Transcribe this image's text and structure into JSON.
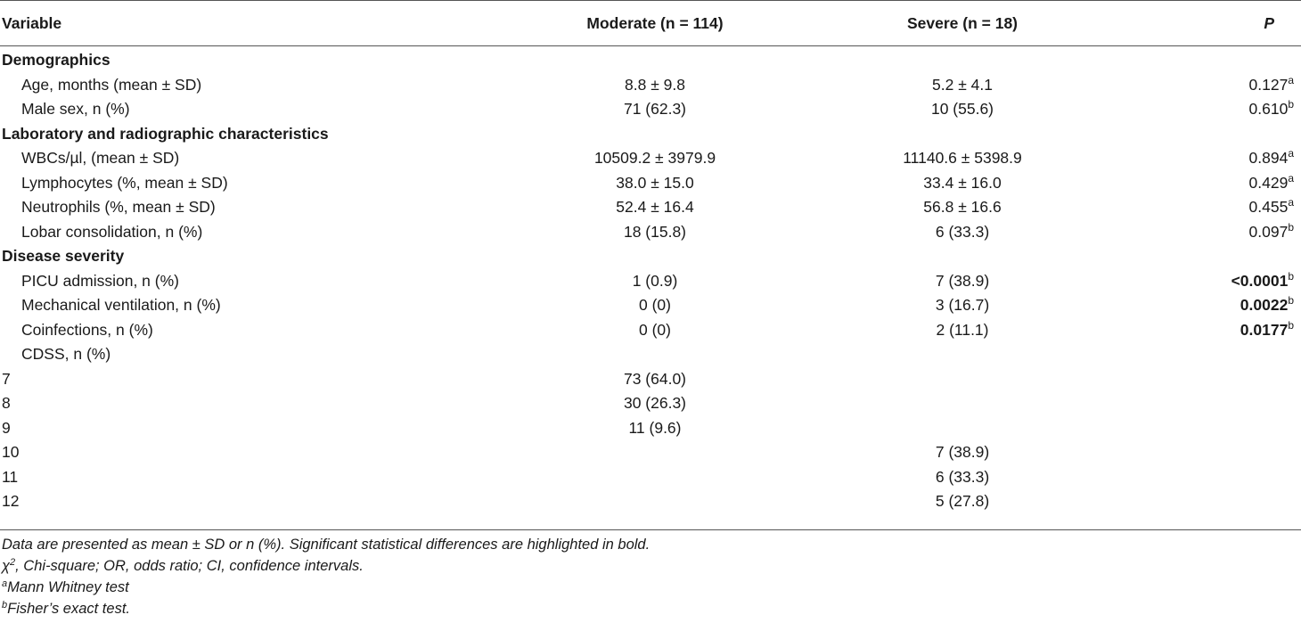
{
  "headers": {
    "variable": "Variable",
    "moderate": "Moderate (n = 114)",
    "severe": "Severe (n = 18)",
    "p": "P"
  },
  "sections": {
    "demographics": "Demographics",
    "lab": "Laboratory and radiographic characteristics",
    "severity": "Disease severity"
  },
  "rows": {
    "age": {
      "label": "Age, months (mean ± SD)",
      "moderate": "8.8 ± 9.8",
      "severe": "5.2 ± 4.1",
      "p": "0.127",
      "sup": "a"
    },
    "male": {
      "label": "Male sex, n (%)",
      "moderate": "71 (62.3)",
      "severe": "10 (55.6)",
      "p": "0.610",
      "sup": "b"
    },
    "wbc": {
      "label": "WBCs/µl, (mean ± SD)",
      "moderate": "10509.2 ± 3979.9",
      "severe": "11140.6 ± 5398.9",
      "p": "0.894",
      "sup": "a"
    },
    "lymph": {
      "label": "Lymphocytes (%, mean ± SD)",
      "moderate": "38.0 ± 15.0",
      "severe": "33.4 ± 16.0",
      "p": "0.429",
      "sup": "a"
    },
    "neutro": {
      "label": "Neutrophils (%, mean ± SD)",
      "moderate": "52.4 ± 16.4",
      "severe": "56.8 ± 16.6",
      "p": "0.455",
      "sup": "a"
    },
    "lobar": {
      "label": "Lobar consolidation, n (%)",
      "moderate": "18 (15.8)",
      "severe": "6 (33.3)",
      "p": "0.097",
      "sup": "b"
    },
    "picu": {
      "label": "PICU admission, n (%)",
      "moderate": "1 (0.9)",
      "severe": "7 (38.9)",
      "p": "<0.0001",
      "sup": "b"
    },
    "mech": {
      "label": "Mechanical ventilation, n (%)",
      "moderate": "0 (0)",
      "severe": "3 (16.7)",
      "p": "0.0022",
      "sup": "b"
    },
    "coinf": {
      "label": "Coinfections, n (%)",
      "moderate": "0 (0)",
      "severe": "2 (11.1)",
      "p": "0.0177",
      "sup": "b"
    },
    "cdss": {
      "label": "CDSS, n (%)"
    },
    "c7": {
      "label": "7",
      "moderate": "73 (64.0)"
    },
    "c8": {
      "label": "8",
      "moderate": "30 (26.3)"
    },
    "c9": {
      "label": "9",
      "moderate": "11 (9.6)"
    },
    "c10": {
      "label": "10",
      "severe": "7 (38.9)"
    },
    "c11": {
      "label": "11",
      "severe": "6 (33.3)"
    },
    "c12": {
      "label": "12",
      "severe": "5 (27.8)"
    }
  },
  "notes": {
    "line1": "Data are presented as mean ± SD or n (%). Significant statistical differences are highlighted in bold.",
    "chi_symbol": "χ",
    "chi_sup": "2",
    "line2_rest": ", Chi-square; OR, odds ratio; CI, confidence intervals.",
    "a_sup": "a",
    "a_text": "Mann Whitney test",
    "b_sup": "b",
    "b_text": "Fisher’s exact test."
  }
}
